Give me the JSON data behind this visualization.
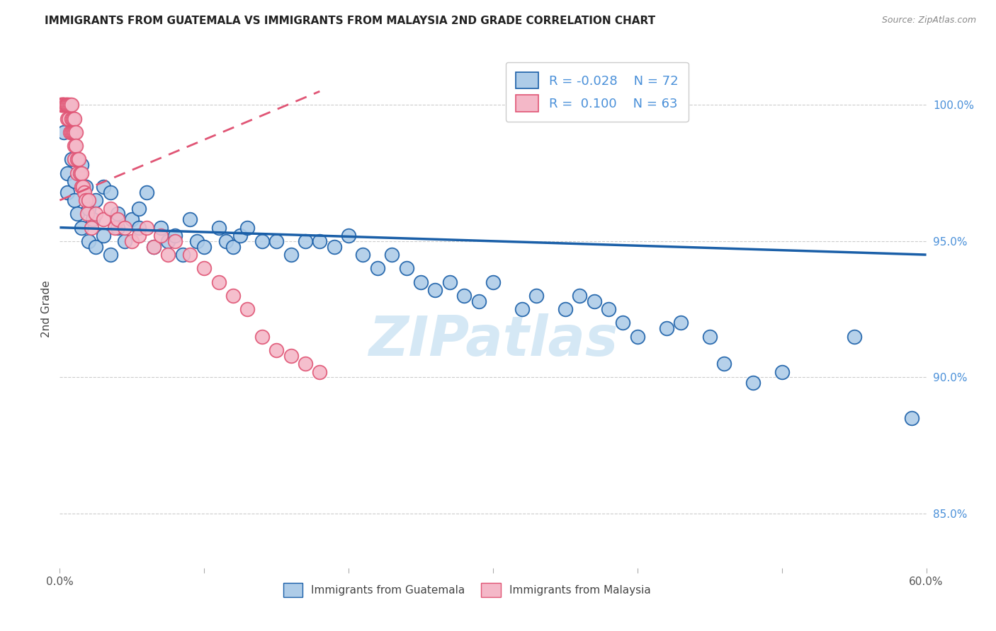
{
  "title": "IMMIGRANTS FROM GUATEMALA VS IMMIGRANTS FROM MALAYSIA 2ND GRADE CORRELATION CHART",
  "source": "Source: ZipAtlas.com",
  "ylabel": "2nd Grade",
  "ylabel_ticks": [
    85.0,
    90.0,
    95.0,
    100.0
  ],
  "ylabel_tick_labels": [
    "85.0%",
    "90.0%",
    "95.0%",
    "100.0%"
  ],
  "xlim": [
    0.0,
    60.0
  ],
  "ylim": [
    83.0,
    102.0
  ],
  "legend_blue_R": "-0.028",
  "legend_blue_N": "72",
  "legend_pink_R": "0.100",
  "legend_pink_N": "63",
  "blue_color": "#aecce8",
  "pink_color": "#f4b8c8",
  "blue_line_color": "#1a5fa8",
  "pink_line_color": "#e05575",
  "watermark_color": "#d5e8f5",
  "blue_scatter_x": [
    0.3,
    0.5,
    0.5,
    0.8,
    1.0,
    1.0,
    1.2,
    1.5,
    1.5,
    1.8,
    2.0,
    2.0,
    2.3,
    2.5,
    2.5,
    3.0,
    3.0,
    3.5,
    3.5,
    4.0,
    4.0,
    4.5,
    5.0,
    5.5,
    5.5,
    6.0,
    6.5,
    7.0,
    7.5,
    8.0,
    8.5,
    9.0,
    9.5,
    10.0,
    11.0,
    11.5,
    12.0,
    12.5,
    13.0,
    14.0,
    15.0,
    16.0,
    17.0,
    18.0,
    19.0,
    20.0,
    21.0,
    22.0,
    23.0,
    24.0,
    25.0,
    26.0,
    27.0,
    28.0,
    29.0,
    30.0,
    32.0,
    33.0,
    35.0,
    36.0,
    37.0,
    38.0,
    39.0,
    40.0,
    42.0,
    43.0,
    45.0,
    46.0,
    48.0,
    50.0,
    55.0,
    59.0
  ],
  "blue_scatter_y": [
    99.0,
    97.5,
    96.8,
    98.0,
    97.2,
    96.5,
    96.0,
    97.8,
    95.5,
    97.0,
    96.2,
    95.0,
    95.8,
    96.5,
    94.8,
    97.0,
    95.2,
    96.8,
    94.5,
    95.5,
    96.0,
    95.0,
    95.8,
    96.2,
    95.5,
    96.8,
    94.8,
    95.5,
    95.0,
    95.2,
    94.5,
    95.8,
    95.0,
    94.8,
    95.5,
    95.0,
    94.8,
    95.2,
    95.5,
    95.0,
    95.0,
    94.5,
    95.0,
    95.0,
    94.8,
    95.2,
    94.5,
    94.0,
    94.5,
    94.0,
    93.5,
    93.2,
    93.5,
    93.0,
    92.8,
    93.5,
    92.5,
    93.0,
    92.5,
    93.0,
    92.8,
    92.5,
    92.0,
    91.5,
    91.8,
    92.0,
    91.5,
    90.5,
    89.8,
    90.2,
    91.5,
    88.5
  ],
  "pink_scatter_x": [
    0.1,
    0.1,
    0.2,
    0.2,
    0.2,
    0.3,
    0.3,
    0.3,
    0.4,
    0.4,
    0.5,
    0.5,
    0.5,
    0.6,
    0.6,
    0.7,
    0.7,
    0.8,
    0.8,
    0.8,
    0.9,
    0.9,
    1.0,
    1.0,
    1.0,
    1.0,
    1.1,
    1.1,
    1.2,
    1.2,
    1.3,
    1.4,
    1.5,
    1.5,
    1.6,
    1.7,
    1.8,
    1.9,
    2.0,
    2.2,
    2.5,
    3.0,
    3.5,
    3.8,
    4.0,
    4.5,
    5.0,
    5.5,
    6.0,
    6.5,
    7.0,
    7.5,
    8.0,
    9.0,
    10.0,
    11.0,
    12.0,
    13.0,
    14.0,
    15.0,
    16.0,
    17.0,
    18.0
  ],
  "pink_scatter_y": [
    100.0,
    100.0,
    100.0,
    100.0,
    100.0,
    100.0,
    100.0,
    100.0,
    100.0,
    100.0,
    100.0,
    100.0,
    99.5,
    100.0,
    99.5,
    100.0,
    99.0,
    100.0,
    99.5,
    99.0,
    99.5,
    99.0,
    99.5,
    99.0,
    98.5,
    98.0,
    99.0,
    98.5,
    98.0,
    97.5,
    98.0,
    97.5,
    97.0,
    97.5,
    97.0,
    96.8,
    96.5,
    96.0,
    96.5,
    95.5,
    96.0,
    95.8,
    96.2,
    95.5,
    95.8,
    95.5,
    95.0,
    95.2,
    95.5,
    94.8,
    95.2,
    94.5,
    95.0,
    94.5,
    94.0,
    93.5,
    93.0,
    92.5,
    91.5,
    91.0,
    90.8,
    90.5,
    90.2
  ],
  "blue_trend_x": [
    0.0,
    60.0
  ],
  "blue_trend_y": [
    95.5,
    94.5
  ],
  "pink_trend_x": [
    0.0,
    18.0
  ],
  "pink_trend_y": [
    96.5,
    100.5
  ]
}
